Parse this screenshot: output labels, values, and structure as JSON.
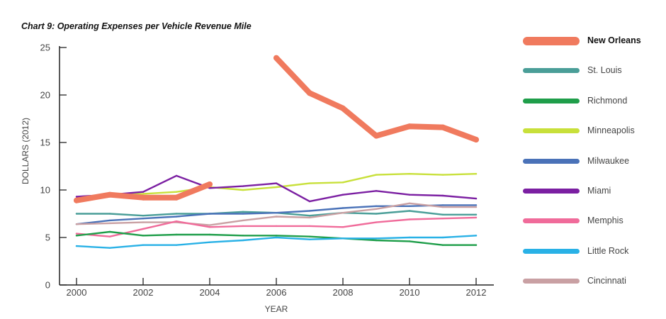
{
  "title": "Chart 9: Operating Expenses per Vehicle Revenue Mile",
  "chart_data": {
    "type": "line",
    "title": "Chart 9: Operating Expenses per Vehicle Revenue Mile",
    "xlabel": "YEAR",
    "ylabel": "DOLLARS (2012)",
    "xlim": [
      2000,
      2012
    ],
    "ylim": [
      0,
      25
    ],
    "x_ticks": [
      "2000",
      "2002",
      "2004",
      "2006",
      "2008",
      "2010",
      "2012"
    ],
    "y_ticks": [
      "0",
      "5",
      "10",
      "15",
      "20",
      "25"
    ],
    "grid": false,
    "legend_position": "right",
    "x": [
      2000,
      2001,
      2002,
      2003,
      2004,
      2005,
      2006,
      2007,
      2008,
      2009,
      2010,
      2011,
      2012
    ],
    "series": [
      {
        "name": "Minneapolis",
        "color": "#c8e03a",
        "values": [
          9.0,
          9.5,
          9.6,
          9.8,
          10.3,
          10.0,
          10.3,
          10.7,
          10.8,
          11.6,
          11.7,
          11.6,
          11.7
        ]
      },
      {
        "name": "Miami",
        "color": "#7b1fa2",
        "values": [
          9.3,
          9.5,
          9.8,
          11.5,
          10.2,
          10.4,
          10.7,
          8.8,
          9.5,
          9.9,
          9.5,
          9.4,
          9.1
        ]
      },
      {
        "name": "St. Louis",
        "color": "#4a9e98",
        "values": [
          7.5,
          7.5,
          7.3,
          7.5,
          7.5,
          7.7,
          7.6,
          7.3,
          7.6,
          7.5,
          7.8,
          7.4,
          7.4
        ]
      },
      {
        "name": "Milwaukee",
        "color": "#4a72b8",
        "values": [
          6.4,
          6.8,
          7.0,
          7.2,
          7.5,
          7.5,
          7.6,
          7.8,
          8.1,
          8.3,
          8.3,
          8.4,
          8.4
        ]
      },
      {
        "name": "Cincinnati",
        "color": "#c9a0a3",
        "values": [
          6.4,
          6.5,
          6.6,
          6.6,
          6.3,
          6.8,
          7.2,
          7.1,
          7.6,
          8.0,
          8.6,
          8.2,
          8.2
        ]
      },
      {
        "name": "Memphis",
        "color": "#f06b9a",
        "values": [
          5.4,
          5.1,
          5.9,
          6.7,
          6.1,
          6.2,
          6.2,
          6.2,
          6.1,
          6.6,
          6.9,
          7.0,
          7.1
        ]
      },
      {
        "name": "Richmond",
        "color": "#1f9e4a",
        "values": [
          5.2,
          5.6,
          5.2,
          5.3,
          5.3,
          5.2,
          5.2,
          5.1,
          4.9,
          4.7,
          4.6,
          4.2,
          4.2
        ]
      },
      {
        "name": "Little Rock",
        "color": "#29b1e6",
        "values": [
          4.1,
          3.9,
          4.2,
          4.2,
          4.5,
          4.7,
          5.0,
          4.8,
          4.9,
          4.9,
          5.0,
          5.0,
          5.2
        ]
      },
      {
        "name": "New Orleans",
        "color": "#f07a5e",
        "values": [
          8.9,
          9.5,
          9.2,
          9.2,
          10.6,
          null,
          23.9,
          20.2,
          18.6,
          15.7,
          16.7,
          16.6,
          15.3
        ]
      }
    ],
    "legend": [
      "New Orleans",
      "St. Louis",
      "Richmond",
      "Minneapolis",
      "Milwaukee",
      "Miami",
      "Memphis",
      "Little Rock",
      "Cincinnati"
    ]
  }
}
